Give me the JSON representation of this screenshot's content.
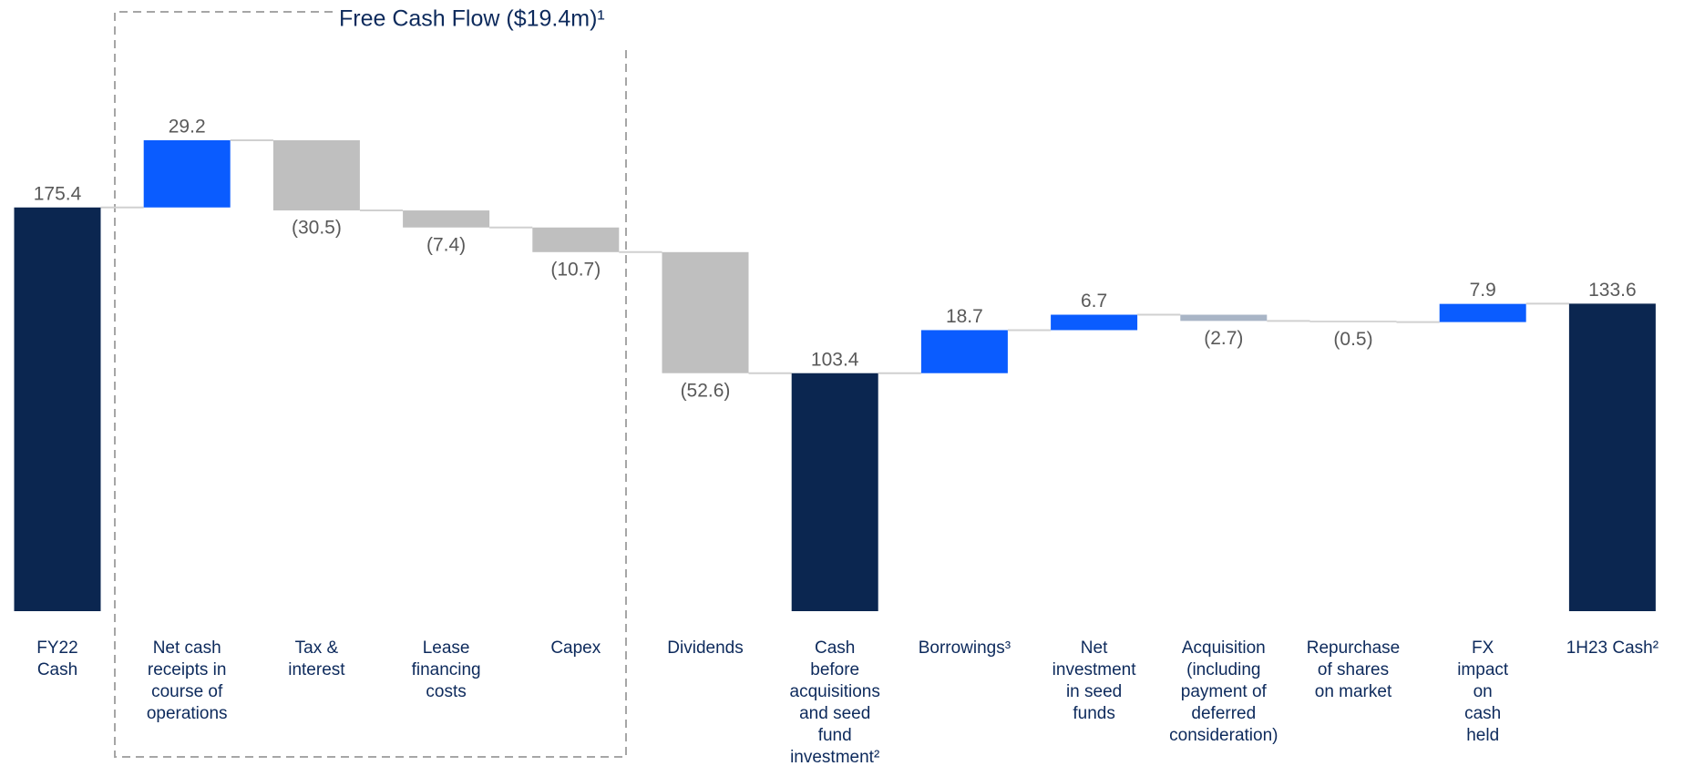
{
  "chart_data": {
    "type": "waterfall",
    "title": "Free Cash Flow ($19.4m)¹",
    "categories": [
      "FY22\nCash",
      "Net cash\nreceipts in\ncourse of\noperations",
      "Tax &\ninterest",
      "Lease\nfinancing\ncosts",
      "Capex",
      "Dividends",
      "Cash\nbefore\nacquisitions\nand seed\nfund\ninvestment²",
      "Borrowings³",
      "Net\ninvestment\nin seed\nfunds",
      "Acquisition\n(including\npayment of\ndeferred\nconsideration)",
      "Repurchase\nof shares\non market",
      "FX\nimpact\non\ncash\nheld",
      "1H23 Cash²"
    ],
    "values": [
      175.4,
      29.2,
      -30.5,
      -7.4,
      -10.7,
      -52.6,
      103.4,
      18.7,
      6.7,
      -2.7,
      -0.5,
      7.9,
      133.6
    ],
    "value_labels": [
      "175.4",
      "29.2",
      "(30.5)",
      "(7.4)",
      "(10.7)",
      "(52.6)",
      "103.4",
      "18.7",
      "6.7",
      "(2.7)",
      "(0.5)",
      "7.9",
      "133.6"
    ],
    "is_total": [
      true,
      false,
      false,
      false,
      false,
      false,
      true,
      false,
      false,
      false,
      false,
      false,
      true
    ],
    "colors": [
      "#0b2650",
      "#0a5cff",
      "#bfbfbf",
      "#bfbfbf",
      "#bfbfbf",
      "#bfbfbf",
      "#0b2650",
      "#0a5cff",
      "#0a5cff",
      "#a9b5c6",
      "#bfbfbf",
      "#0a5cff",
      "#0b2650"
    ]
  }
}
